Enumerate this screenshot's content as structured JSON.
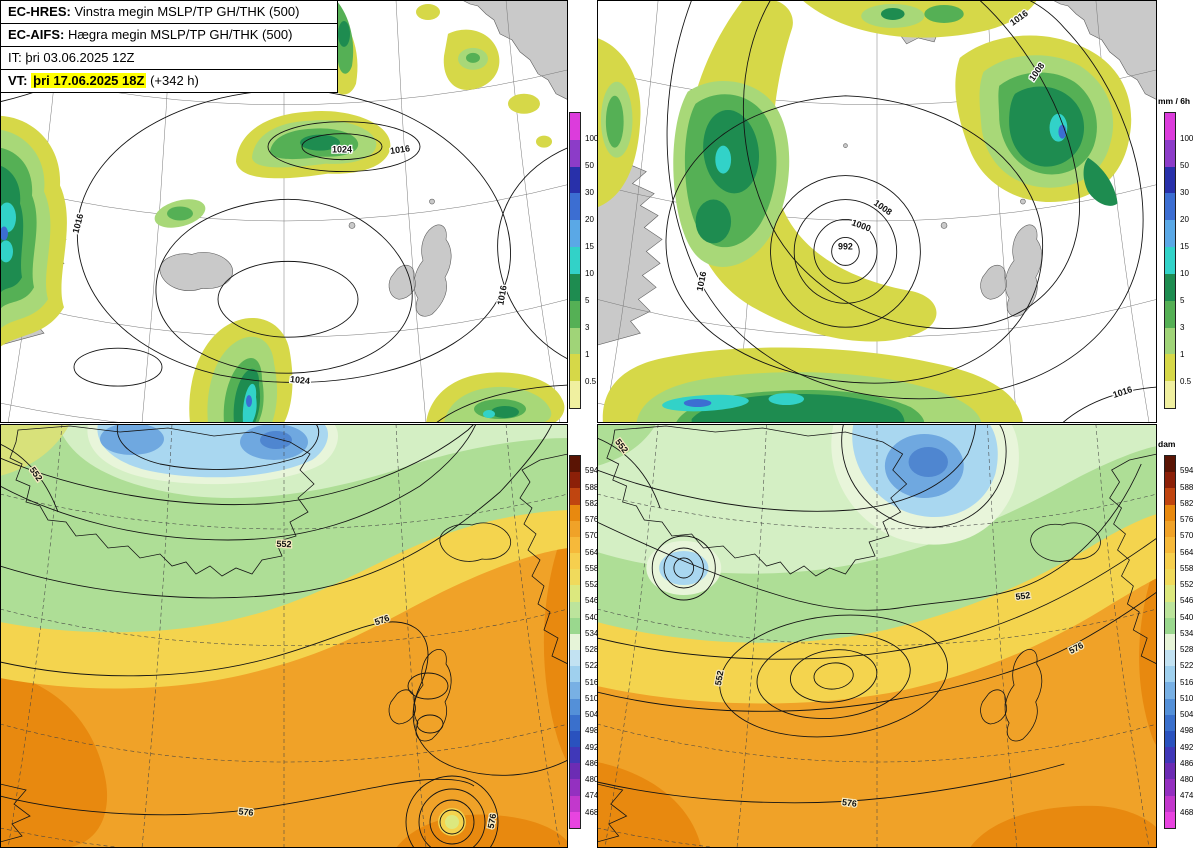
{
  "legend": {
    "rows": [
      {
        "prefix": "EC-HRES:",
        "text": "Vinstra megin MSLP/TP GH/THK (500)"
      },
      {
        "prefix": "EC-AIFS:",
        "text": "Hægra megin MSLP/TP GH/THK (500)"
      },
      {
        "prefix": "IT:",
        "text": "þri 03.06.2025 12Z"
      },
      {
        "prefix": "VT:",
        "highlight": "þri 17.06.2025 18Z",
        "suffix": "(+342 h)"
      }
    ],
    "highlight_color": "#ffff00"
  },
  "colorbars": {
    "precip": {
      "unit": "mm / 6h",
      "segments": [
        {
          "color": "#dc3cdc",
          "label": "100"
        },
        {
          "color": "#8c3cc8",
          "label": "50"
        },
        {
          "color": "#2830aa",
          "label": "30"
        },
        {
          "color": "#3c6ed2",
          "label": "20"
        },
        {
          "color": "#5aa8e6",
          "label": "15"
        },
        {
          "color": "#32d2c8",
          "label": "10"
        },
        {
          "color": "#1e8c50",
          "label": "5"
        },
        {
          "color": "#55b055",
          "label": "3"
        },
        {
          "color": "#a0d478",
          "label": "1"
        },
        {
          "color": "#d6d848",
          "label": "0.5"
        },
        {
          "color": "#f0f0a0",
          "label": ""
        }
      ]
    },
    "height": {
      "unit": "dam",
      "segments": [
        {
          "color": "#5a1404",
          "label": "594"
        },
        {
          "color": "#8c2008",
          "label": "588"
        },
        {
          "color": "#c04510",
          "label": "582"
        },
        {
          "color": "#e8890f",
          "label": "576"
        },
        {
          "color": "#f0a228",
          "label": "570"
        },
        {
          "color": "#f6b93a",
          "label": "564"
        },
        {
          "color": "#f6cf4e",
          "label": "558"
        },
        {
          "color": "#f0da5c",
          "label": "552"
        },
        {
          "color": "#dce87e",
          "label": "546"
        },
        {
          "color": "#bce49c",
          "label": "540"
        },
        {
          "color": "#9ad88e",
          "label": "534"
        },
        {
          "color": "#e6f4d8",
          "label": "528"
        },
        {
          "color": "#c2e2f2",
          "label": "522"
        },
        {
          "color": "#9fd0ee",
          "label": "516"
        },
        {
          "color": "#78b0e4",
          "label": "510"
        },
        {
          "color": "#5490d8",
          "label": "504"
        },
        {
          "color": "#3a70cc",
          "label": "498"
        },
        {
          "color": "#2a52be",
          "label": "492"
        },
        {
          "color": "#4038b8",
          "label": "486"
        },
        {
          "color": "#6c2cb4",
          "label": "480"
        },
        {
          "color": "#9430c0",
          "label": "474"
        },
        {
          "color": "#c238cc",
          "label": "468"
        },
        {
          "color": "#e844e0",
          "label": ""
        }
      ]
    }
  },
  "panels": {
    "top_left": {
      "contour_labels": [
        "1016",
        "1024",
        "1016",
        "1024",
        "1016"
      ]
    },
    "top_right": {
      "contour_labels": [
        "992",
        "1000",
        "1008",
        "1016",
        "1016",
        "1008",
        "1016"
      ]
    },
    "bottom_left": {
      "contour_labels": [
        "552",
        "552",
        "576",
        "576",
        "576"
      ]
    },
    "bottom_right": {
      "contour_labels": [
        "552",
        "552",
        "552",
        "576",
        "576"
      ]
    }
  }
}
